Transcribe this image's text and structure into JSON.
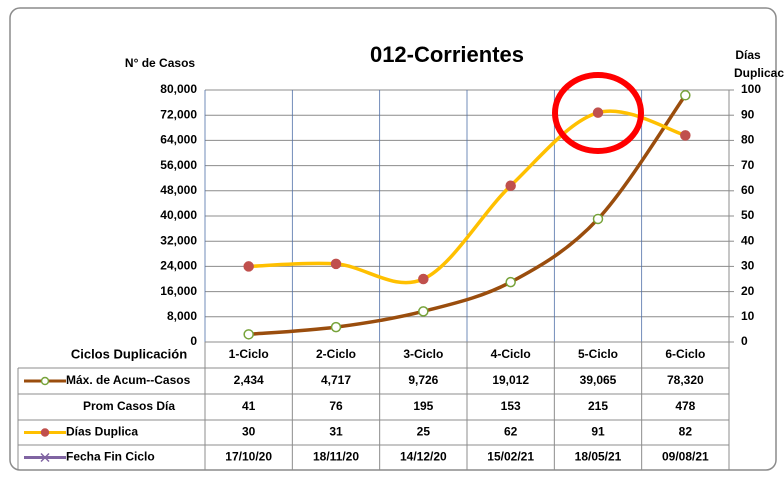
{
  "chart_data": {
    "type": "line",
    "title": "012-Corrientes",
    "y_label": "N° de Casos",
    "y2_label": [
      "Días",
      "Duplicación"
    ],
    "table_header": "Ciclos Duplicación",
    "categories": [
      "1-Ciclo",
      "2-Ciclo",
      "3-Ciclo",
      "4-Ciclo",
      "5-Ciclo",
      "6-Ciclo"
    ],
    "series": [
      {
        "name": "Máx. de Acum--Casos",
        "color": "#9a4d0d",
        "marker_color": "#77a33a",
        "marker_fill": "#ffffff",
        "values": [
          2434,
          4717,
          9726,
          19012,
          39065,
          78320
        ],
        "value_labels": [
          "2,434",
          "4,717",
          "9,726",
          "19,012",
          "39,065",
          "78,320"
        ]
      },
      {
        "name": "Prom Casos Día",
        "values": [
          41,
          76,
          195,
          153,
          215,
          478
        ]
      },
      {
        "name": "Días Duplica",
        "color": "#ffc000",
        "marker_color": "#c0504d",
        "marker_fill": "#c0504d",
        "axis": "y2",
        "values": [
          30,
          31,
          25,
          62,
          91,
          82
        ]
      },
      {
        "name": "Fecha Fin Ciclo",
        "color": "#8064a2",
        "values": [
          "17/10/20",
          "18/11/20",
          "14/12/20",
          "15/02/21",
          "18/05/21",
          "09/08/21"
        ]
      }
    ],
    "ylim": [
      0,
      80000
    ],
    "yticks": [
      0,
      {
        "value": 8000,
        "label": "8,000"
      },
      {
        "value": 16000,
        "label": "16,000"
      },
      {
        "value": 24000,
        "label": "24,000"
      },
      {
        "value": 32000,
        "label": "32,000"
      },
      {
        "value": 40000,
        "label": "40,000"
      },
      {
        "value": 48000,
        "label": "48,000"
      },
      {
        "value": 56000,
        "label": "56,000"
      },
      {
        "value": 64000,
        "label": "64,000"
      },
      {
        "value": 72000,
        "label": "72,000"
      },
      {
        "value": 80000,
        "label": "80,000"
      }
    ],
    "y2lim": [
      0,
      100
    ],
    "y2ticks": [
      0,
      10,
      20,
      30,
      40,
      50,
      60,
      70,
      80,
      90,
      100
    ],
    "grid": true,
    "smooth": true
  }
}
